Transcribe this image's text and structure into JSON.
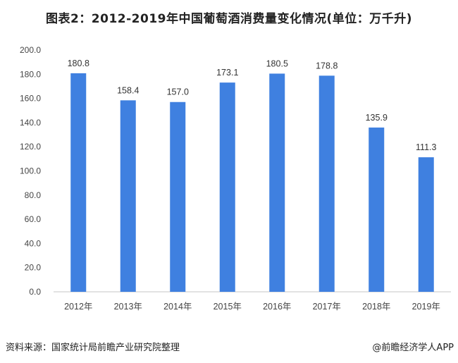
{
  "chart_data": {
    "type": "bar",
    "title": "图表2：2012-2019年中国葡萄酒消费量变化情况(单位：万千升)",
    "categories": [
      "2012年",
      "2013年",
      "2014年",
      "2015年",
      "2016年",
      "2017年",
      "2018年",
      "2019年"
    ],
    "values": [
      180.8,
      158.4,
      157.0,
      173.1,
      180.5,
      178.8,
      135.9,
      111.3
    ],
    "data_labels": [
      "180.8",
      "158.4",
      "157.0",
      "173.1",
      "180.5",
      "178.8",
      "135.9",
      "111.3"
    ],
    "ylim": [
      0,
      200
    ],
    "yticks": [
      "0.0",
      "20.0",
      "40.0",
      "60.0",
      "80.0",
      "100.0",
      "120.0",
      "140.0",
      "160.0",
      "180.0",
      "200.0"
    ],
    "xlabel": "",
    "ylabel": "",
    "grid": false,
    "bar_color": "#3f80e0"
  },
  "footer": {
    "source": "资料来源：国家统计局前瞻产业研究院整理",
    "brand": "@前瞻经济学人APP"
  }
}
